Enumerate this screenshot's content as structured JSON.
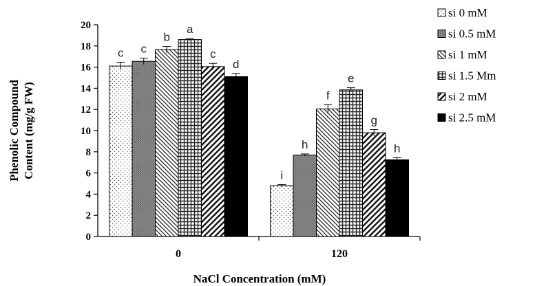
{
  "chart_data": {
    "type": "bar",
    "title": "",
    "xlabel": "NaCl Concentration (mM)",
    "ylabel_lines": [
      "Phenolic Compound",
      "Content (mg/g FW)"
    ],
    "ylim": [
      0,
      20
    ],
    "yticks": [
      0,
      2,
      4,
      6,
      8,
      10,
      12,
      14,
      16,
      18,
      20
    ],
    "categories": [
      "0",
      "120"
    ],
    "legend_position": "right",
    "grid": false,
    "series": [
      {
        "name": "si 0 mM",
        "pattern": "dots",
        "values": [
          16.1,
          4.8
        ],
        "errors": [
          0.35,
          0.1
        ],
        "letters": [
          "c",
          "i"
        ]
      },
      {
        "name": "si 0.5 mM",
        "pattern": "gray",
        "values": [
          16.55,
          7.7
        ],
        "errors": [
          0.3,
          0.1
        ],
        "letters": [
          "c",
          "h"
        ]
      },
      {
        "name": "si 1 mM",
        "pattern": "diag-thin",
        "values": [
          17.65,
          12.05
        ],
        "errors": [
          0.3,
          0.4
        ],
        "letters": [
          "b",
          "f"
        ]
      },
      {
        "name": "si 1.5 Mm",
        "pattern": "grid",
        "values": [
          18.6,
          13.85
        ],
        "errors": [
          0.1,
          0.2
        ],
        "letters": [
          "a",
          "e"
        ]
      },
      {
        "name": "si 2 mM",
        "pattern": "diag-thick",
        "values": [
          16.05,
          9.8
        ],
        "errors": [
          0.3,
          0.3
        ],
        "letters": [
          "c",
          "g"
        ]
      },
      {
        "name": "si 2.5 mM",
        "pattern": "solid",
        "values": [
          15.1,
          7.25
        ],
        "errors": [
          0.3,
          0.2
        ],
        "letters": [
          "d",
          "h"
        ]
      }
    ]
  }
}
